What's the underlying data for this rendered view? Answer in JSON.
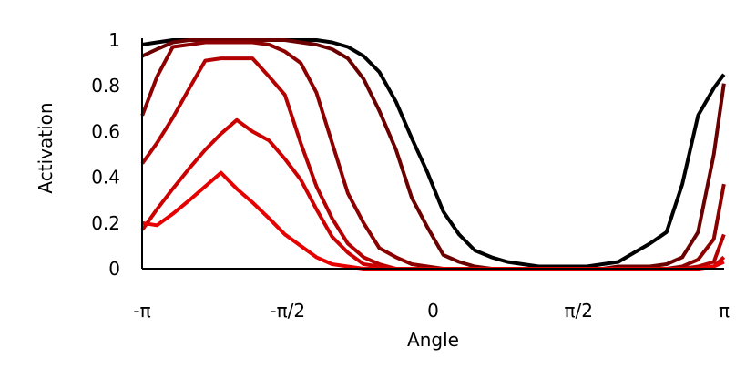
{
  "chart_data": {
    "type": "line",
    "title": "",
    "xlabel": "Angle",
    "ylabel": "Activation",
    "xlim": [
      -3.14159,
      3.14159
    ],
    "ylim": [
      0,
      1
    ],
    "grid": false,
    "x_ticks": [
      {
        "value": -3.14159,
        "label": "-π"
      },
      {
        "value": -1.5708,
        "label": "-π/2"
      },
      {
        "value": 0,
        "label": "0"
      },
      {
        "value": 1.5708,
        "label": "π/2"
      },
      {
        "value": 3.14159,
        "label": "π"
      }
    ],
    "y_ticks": [
      {
        "value": 0,
        "label": "0"
      },
      {
        "value": 0.2,
        "label": "0.2"
      },
      {
        "value": 0.4,
        "label": "0.4"
      },
      {
        "value": 0.6,
        "label": "0.6"
      },
      {
        "value": 0.8,
        "label": "0.8"
      },
      {
        "value": 1,
        "label": "1"
      }
    ],
    "x": [
      -3.14,
      -2.98,
      -2.81,
      -2.63,
      -2.46,
      -2.29,
      -2.12,
      -1.95,
      -1.77,
      -1.6,
      -1.43,
      -1.26,
      -1.09,
      -0.92,
      -0.75,
      -0.58,
      -0.4,
      -0.23,
      -0.06,
      0.11,
      0.28,
      0.45,
      0.63,
      0.8,
      0.97,
      1.14,
      1.31,
      1.48,
      1.66,
      1.83,
      2.0,
      2.17,
      2.34,
      2.52,
      2.69,
      2.86,
      3.03,
      3.14
    ],
    "series": [
      {
        "color": "#000000",
        "values": [
          0.98,
          0.99,
          1.0,
          1.0,
          1.0,
          1.0,
          1.0,
          1.0,
          1.0,
          1.0,
          1.0,
          1.0,
          0.99,
          0.97,
          0.93,
          0.86,
          0.73,
          0.57,
          0.42,
          0.25,
          0.15,
          0.08,
          0.05,
          0.03,
          0.02,
          0.01,
          0.01,
          0.01,
          0.01,
          0.02,
          0.03,
          0.07,
          0.11,
          0.16,
          0.37,
          0.67,
          0.79,
          0.85
        ]
      },
      {
        "color": "#6b0000",
        "values": [
          0.93,
          0.96,
          0.99,
          1.0,
          1.0,
          1.0,
          1.0,
          1.0,
          1.0,
          1.0,
          0.99,
          0.98,
          0.96,
          0.92,
          0.83,
          0.69,
          0.52,
          0.31,
          0.18,
          0.06,
          0.03,
          0.01,
          0.0,
          0.0,
          0.0,
          0.0,
          0.0,
          0.0,
          0.0,
          0.0,
          0.01,
          0.01,
          0.01,
          0.02,
          0.05,
          0.16,
          0.5,
          0.81
        ]
      },
      {
        "color": "#8c0000",
        "values": [
          0.67,
          0.84,
          0.97,
          0.98,
          0.99,
          0.99,
          0.99,
          0.99,
          0.98,
          0.95,
          0.9,
          0.77,
          0.55,
          0.33,
          0.2,
          0.09,
          0.05,
          0.02,
          0.01,
          0.0,
          0.0,
          0.0,
          0.0,
          0.0,
          0.0,
          0.0,
          0.0,
          0.0,
          0.0,
          0.0,
          0.0,
          0.0,
          0.0,
          0.0,
          0.01,
          0.04,
          0.13,
          0.37
        ]
      },
      {
        "color": "#b30000",
        "values": [
          0.46,
          0.55,
          0.66,
          0.79,
          0.91,
          0.92,
          0.92,
          0.92,
          0.84,
          0.76,
          0.55,
          0.36,
          0.22,
          0.11,
          0.05,
          0.02,
          0.0,
          0.0,
          0.0,
          0.0,
          0.0,
          0.0,
          0.0,
          0.0,
          0.0,
          0.0,
          0.0,
          0.0,
          0.0,
          0.0,
          0.0,
          0.0,
          0.0,
          0.0,
          0.0,
          0.01,
          0.03,
          0.15
        ]
      },
      {
        "color": "#cc0000",
        "values": [
          0.17,
          0.26,
          0.35,
          0.44,
          0.52,
          0.59,
          0.65,
          0.6,
          0.56,
          0.48,
          0.39,
          0.26,
          0.14,
          0.07,
          0.02,
          0.01,
          0.0,
          0.0,
          0.0,
          0.0,
          0.0,
          0.0,
          0.0,
          0.0,
          0.0,
          0.0,
          0.0,
          0.0,
          0.0,
          0.0,
          0.0,
          0.0,
          0.0,
          0.0,
          0.0,
          0.0,
          0.01,
          0.05
        ]
      },
      {
        "color": "#e60000",
        "values": [
          0.2,
          0.19,
          0.24,
          0.3,
          0.36,
          0.42,
          0.35,
          0.29,
          0.22,
          0.15,
          0.1,
          0.05,
          0.02,
          0.01,
          0.0,
          0.0,
          0.0,
          0.0,
          0.0,
          0.0,
          0.0,
          0.0,
          0.0,
          0.0,
          0.0,
          0.0,
          0.0,
          0.0,
          0.0,
          0.0,
          0.0,
          0.0,
          0.0,
          0.0,
          0.0,
          0.0,
          0.01,
          0.03
        ]
      }
    ]
  }
}
